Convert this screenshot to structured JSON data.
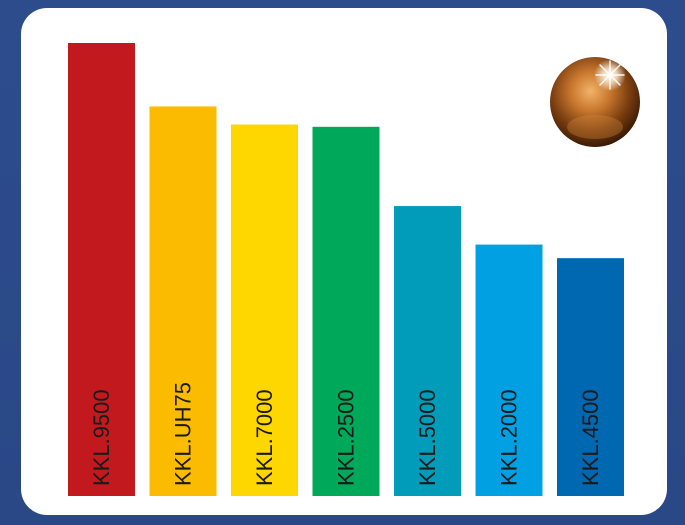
{
  "chart_data": {
    "type": "bar",
    "orientation": "vertical",
    "labels_rotated": true,
    "axes_visible": false,
    "grid": false,
    "legend": "none",
    "categories": [
      "KKL.9500",
      "KKL.UH75",
      "KKL.7000",
      "KKL.2500",
      "KKL.5000",
      "KKL.2000",
      "KKL.4500"
    ],
    "values": [
      100,
      86,
      82,
      81.5,
      64,
      55.5,
      52.5
    ],
    "value_unit": "percent of tallest bar",
    "ylim": [
      0,
      100
    ],
    "colors": [
      "#c1191e",
      "#fbbb00",
      "#fed600",
      "#00a859",
      "#009cba",
      "#00a0e3",
      "#0067b1"
    ]
  },
  "colors": {
    "background": "#2b4a8a",
    "card": "#ffffff",
    "label_text": "#1a1a1a"
  },
  "decoration": {
    "icon": "bronze-sphere-icon"
  }
}
